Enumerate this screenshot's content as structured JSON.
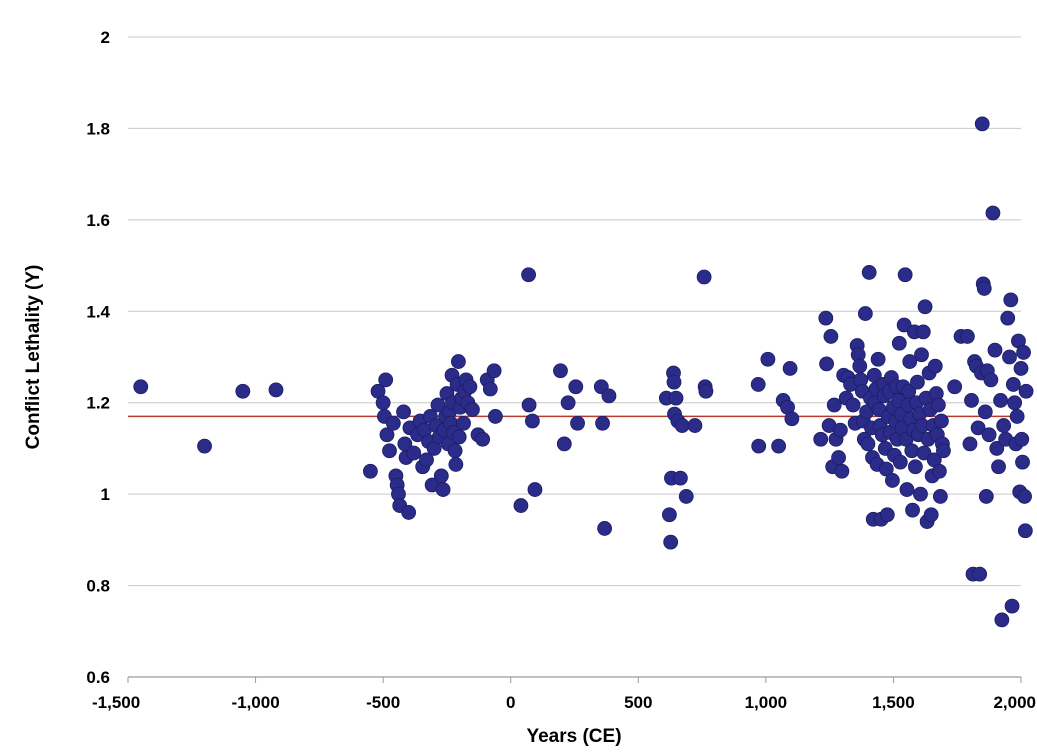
{
  "colors": {
    "marker": "#2b2c8a",
    "marker_stroke": "#1c1d63",
    "gridline": "#c8c8c8",
    "reference_line": "#b63a2e",
    "axis": "#9a9a9a"
  },
  "chart_data": {
    "type": "scatter",
    "title": "",
    "xlabel": "Years (CE)",
    "ylabel": "Conflict Lethality (Y)",
    "xlim": [
      -1500,
      2000
    ],
    "ylim": [
      0.6,
      2
    ],
    "grid": "horizontal",
    "x_ticks": [
      -1500,
      -1000,
      -500,
      0,
      500,
      1000,
      1500,
      2000
    ],
    "x_tick_labels": [
      "-1,500",
      "-1,000",
      "-500",
      "0",
      "500",
      "1,000",
      "1,500",
      "2,000"
    ],
    "y_ticks": [
      0.6,
      0.8,
      1,
      1.2,
      1.4,
      1.6,
      1.8,
      2
    ],
    "y_tick_labels": [
      "0.6",
      "0.8",
      "1",
      "1.2",
      "1.4",
      "1.6",
      "1.8",
      "2"
    ],
    "reference_line": {
      "y": 1.17
    },
    "points": [
      [
        -1450,
        1.235
      ],
      [
        -1200,
        1.105
      ],
      [
        -1050,
        1.225
      ],
      [
        -920,
        1.228
      ],
      [
        -550,
        1.05
      ],
      [
        -520,
        1.225
      ],
      [
        -500,
        1.2
      ],
      [
        -490,
        1.25
      ],
      [
        -495,
        1.17
      ],
      [
        -485,
        1.13
      ],
      [
        -475,
        1.095
      ],
      [
        -460,
        1.155
      ],
      [
        -450,
        1.04
      ],
      [
        -445,
        1.02
      ],
      [
        -440,
        1.0
      ],
      [
        -435,
        0.975
      ],
      [
        -420,
        1.18
      ],
      [
        -415,
        1.11
      ],
      [
        -410,
        1.08
      ],
      [
        -400,
        0.96
      ],
      [
        -395,
        1.145
      ],
      [
        -380,
        1.09
      ],
      [
        -365,
        1.13
      ],
      [
        -355,
        1.16
      ],
      [
        -345,
        1.06
      ],
      [
        -338,
        1.14
      ],
      [
        -330,
        1.075
      ],
      [
        -322,
        1.115
      ],
      [
        -315,
        1.17
      ],
      [
        -308,
        1.02
      ],
      [
        -300,
        1.1
      ],
      [
        -292,
        1.15
      ],
      [
        -285,
        1.195
      ],
      [
        -280,
        1.125
      ],
      [
        -272,
        1.04
      ],
      [
        -265,
        1.01
      ],
      [
        -260,
        1.14
      ],
      [
        -255,
        1.17
      ],
      [
        -250,
        1.22
      ],
      [
        -245,
        1.11
      ],
      [
        -240,
        1.18
      ],
      [
        -235,
        1.155
      ],
      [
        -230,
        1.26
      ],
      [
        -228,
        1.2
      ],
      [
        -224,
        1.135
      ],
      [
        -218,
        1.095
      ],
      [
        -215,
        1.065
      ],
      [
        -210,
        1.24
      ],
      [
        -205,
        1.29
      ],
      [
        -202,
        1.125
      ],
      [
        -198,
        1.19
      ],
      [
        -192,
        1.21
      ],
      [
        -185,
        1.155
      ],
      [
        -180,
        1.225
      ],
      [
        -175,
        1.25
      ],
      [
        -168,
        1.2
      ],
      [
        -160,
        1.235
      ],
      [
        -150,
        1.185
      ],
      [
        -128,
        1.13
      ],
      [
        -110,
        1.12
      ],
      [
        -92,
        1.25
      ],
      [
        -80,
        1.23
      ],
      [
        -65,
        1.27
      ],
      [
        -60,
        1.17
      ],
      [
        40,
        0.975
      ],
      [
        70,
        1.48
      ],
      [
        72,
        1.195
      ],
      [
        85,
        1.16
      ],
      [
        95,
        1.01
      ],
      [
        195,
        1.27
      ],
      [
        210,
        1.11
      ],
      [
        225,
        1.2
      ],
      [
        255,
        1.235
      ],
      [
        262,
        1.155
      ],
      [
        355,
        1.235
      ],
      [
        360,
        1.155
      ],
      [
        368,
        0.925
      ],
      [
        385,
        1.215
      ],
      [
        610,
        1.21
      ],
      [
        622,
        0.955
      ],
      [
        627,
        0.895
      ],
      [
        630,
        1.035
      ],
      [
        638,
        1.265
      ],
      [
        640,
        1.245
      ],
      [
        642,
        1.175
      ],
      [
        648,
        1.21
      ],
      [
        655,
        1.16
      ],
      [
        665,
        1.035
      ],
      [
        672,
        1.15
      ],
      [
        688,
        0.995
      ],
      [
        722,
        1.15
      ],
      [
        758,
        1.475
      ],
      [
        762,
        1.235
      ],
      [
        765,
        1.225
      ],
      [
        970,
        1.24
      ],
      [
        972,
        1.105
      ],
      [
        1008,
        1.295
      ],
      [
        1050,
        1.105
      ],
      [
        1068,
        1.205
      ],
      [
        1085,
        1.19
      ],
      [
        1095,
        1.275
      ],
      [
        1102,
        1.165
      ],
      [
        1215,
        1.12
      ],
      [
        1235,
        1.385
      ],
      [
        1238,
        1.285
      ],
      [
        1248,
        1.15
      ],
      [
        1255,
        1.345
      ],
      [
        1262,
        1.06
      ],
      [
        1268,
        1.195
      ],
      [
        1275,
        1.12
      ],
      [
        1285,
        1.08
      ],
      [
        1292,
        1.14
      ],
      [
        1298,
        1.05
      ],
      [
        1305,
        1.26
      ],
      [
        1315,
        1.21
      ],
      [
        1322,
        1.255
      ],
      [
        1332,
        1.24
      ],
      [
        1342,
        1.195
      ],
      [
        1350,
        1.155
      ],
      [
        1358,
        1.325
      ],
      [
        1362,
        1.305
      ],
      [
        1368,
        1.28
      ],
      [
        1372,
        1.25
      ],
      [
        1378,
        1.225
      ],
      [
        1382,
        1.16
      ],
      [
        1386,
        1.12
      ],
      [
        1390,
        1.395
      ],
      [
        1395,
        1.18
      ],
      [
        1400,
        1.11
      ],
      [
        1405,
        1.485
      ],
      [
        1410,
        1.21
      ],
      [
        1414,
        1.145
      ],
      [
        1418,
        1.08
      ],
      [
        1421,
        0.945
      ],
      [
        1425,
        1.26
      ],
      [
        1428,
        1.2
      ],
      [
        1432,
        1.23
      ],
      [
        1436,
        1.065
      ],
      [
        1440,
        1.295
      ],
      [
        1444,
        1.185
      ],
      [
        1448,
        1.15
      ],
      [
        1452,
        0.945
      ],
      [
        1456,
        1.13
      ],
      [
        1460,
        1.24
      ],
      [
        1464,
        1.215
      ],
      [
        1468,
        1.1
      ],
      [
        1472,
        1.055
      ],
      [
        1476,
        0.955
      ],
      [
        1480,
        1.17
      ],
      [
        1484,
        1.225
      ],
      [
        1488,
        1.135
      ],
      [
        1492,
        1.255
      ],
      [
        1496,
        1.03
      ],
      [
        1500,
        1.19
      ],
      [
        1504,
        1.085
      ],
      [
        1508,
        1.16
      ],
      [
        1512,
        1.235
      ],
      [
        1515,
        1.12
      ],
      [
        1520,
        1.205
      ],
      [
        1523,
        1.33
      ],
      [
        1527,
        1.07
      ],
      [
        1530,
        1.175
      ],
      [
        1534,
        1.145
      ],
      [
        1538,
        1.235
      ],
      [
        1542,
        1.37
      ],
      [
        1546,
        1.48
      ],
      [
        1550,
        1.12
      ],
      [
        1553,
        1.01
      ],
      [
        1557,
        1.195
      ],
      [
        1560,
        1.225
      ],
      [
        1564,
        1.29
      ],
      [
        1568,
        1.165
      ],
      [
        1572,
        1.095
      ],
      [
        1575,
        0.965
      ],
      [
        1578,
        1.14
      ],
      [
        1582,
        1.355
      ],
      [
        1586,
        1.06
      ],
      [
        1590,
        1.2
      ],
      [
        1594,
        1.245
      ],
      [
        1598,
        1.13
      ],
      [
        1602,
        1.175
      ],
      [
        1606,
        1.0
      ],
      [
        1610,
        1.305
      ],
      [
        1613,
        1.15
      ],
      [
        1617,
        1.355
      ],
      [
        1620,
        1.09
      ],
      [
        1624,
        1.41
      ],
      [
        1628,
        1.21
      ],
      [
        1632,
        0.94
      ],
      [
        1636,
        1.12
      ],
      [
        1640,
        1.265
      ],
      [
        1644,
        1.185
      ],
      [
        1648,
        0.955
      ],
      [
        1652,
        1.04
      ],
      [
        1656,
        1.15
      ],
      [
        1660,
        1.075
      ],
      [
        1664,
        1.28
      ],
      [
        1668,
        1.22
      ],
      [
        1672,
        1.13
      ],
      [
        1676,
        1.195
      ],
      [
        1680,
        1.05
      ],
      [
        1684,
        0.995
      ],
      [
        1688,
        1.16
      ],
      [
        1692,
        1.11
      ],
      [
        1696,
        1.095
      ],
      [
        1740,
        1.235
      ],
      [
        1765,
        1.345
      ],
      [
        1790,
        1.345
      ],
      [
        1800,
        1.11
      ],
      [
        1806,
        1.205
      ],
      [
        1812,
        0.825
      ],
      [
        1818,
        1.29
      ],
      [
        1825,
        1.28
      ],
      [
        1832,
        1.145
      ],
      [
        1838,
        0.825
      ],
      [
        1845,
        1.265
      ],
      [
        1848,
        1.81
      ],
      [
        1852,
        1.46
      ],
      [
        1856,
        1.45
      ],
      [
        1860,
        1.18
      ],
      [
        1864,
        0.995
      ],
      [
        1868,
        1.27
      ],
      [
        1875,
        1.13
      ],
      [
        1882,
        1.25
      ],
      [
        1890,
        1.615
      ],
      [
        1898,
        1.315
      ],
      [
        1905,
        1.1
      ],
      [
        1912,
        1.06
      ],
      [
        1920,
        1.205
      ],
      [
        1925,
        0.725
      ],
      [
        1932,
        1.15
      ],
      [
        1940,
        1.12
      ],
      [
        1948,
        1.385
      ],
      [
        1955,
        1.3
      ],
      [
        1960,
        1.425
      ],
      [
        1965,
        0.755
      ],
      [
        1970,
        1.24
      ],
      [
        1975,
        1.2
      ],
      [
        1980,
        1.11
      ],
      [
        1985,
        1.17
      ],
      [
        1990,
        1.335
      ],
      [
        1995,
        1.005
      ],
      [
        2000,
        1.275
      ],
      [
        2003,
        1.12
      ],
      [
        2006,
        1.07
      ],
      [
        2010,
        1.31
      ],
      [
        2014,
        0.995
      ],
      [
        2017,
        0.92
      ],
      [
        2020,
        1.225
      ]
    ]
  }
}
